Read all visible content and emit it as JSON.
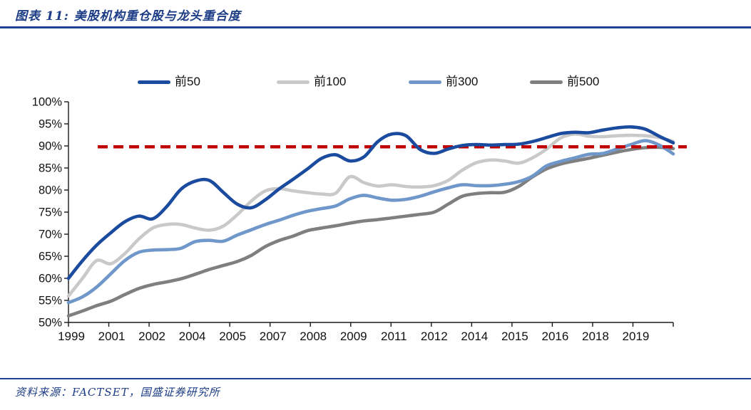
{
  "header": {
    "title": "图表 11:  美股机构重仓股与龙头重合度"
  },
  "footer": {
    "source_text": "资料来源：FACTSET，国盛证券研究所"
  },
  "colors": {
    "accent_navy": "#1c3c86",
    "rule_navy": "#1e4191",
    "reference_red": "#c00000",
    "axis_black": "#1a1a1a"
  },
  "chart_data": {
    "type": "line",
    "title": "美股机构重仓股与龙头重合度",
    "xlabel": "",
    "ylabel": "",
    "ylim": [
      50,
      100
    ],
    "ytick_step": 5,
    "ytick_labels": [
      "100%",
      "95%",
      "90%",
      "85%",
      "80%",
      "75%",
      "70%",
      "65%",
      "60%",
      "55%",
      "50%"
    ],
    "x_tick_labels": [
      "1999",
      "2001",
      "2002",
      "2004",
      "2005",
      "2007",
      "2008",
      "2009",
      "2011",
      "2012",
      "2014",
      "2015",
      "2016",
      "2018",
      "2019"
    ],
    "x_years": [
      1999.0,
      1999.5,
      2000.0,
      2000.5,
      2001.0,
      2001.5,
      2002.0,
      2002.5,
      2003.0,
      2003.5,
      2004.0,
      2004.5,
      2005.0,
      2005.5,
      2006.0,
      2006.5,
      2007.0,
      2007.5,
      2008.0,
      2008.5,
      2009.0,
      2009.5,
      2010.0,
      2010.5,
      2011.0,
      2011.5,
      2012.0,
      2012.5,
      2013.0,
      2013.5,
      2014.0,
      2014.5,
      2015.0,
      2015.5,
      2016.0,
      2016.5,
      2017.0,
      2017.5,
      2018.0,
      2018.5,
      2019.0,
      2019.5,
      2020.0,
      2020.5
    ],
    "grid": false,
    "legend_position": "top",
    "series": [
      {
        "name": "前50",
        "color": "#1b4b9f",
        "values": [
          60.0,
          64.0,
          67.5,
          70.3,
          72.8,
          74.1,
          73.5,
          76.3,
          80.2,
          82.0,
          82.2,
          79.5,
          76.8,
          76.0,
          77.8,
          80.3,
          82.5,
          84.8,
          87.2,
          88.0,
          86.6,
          87.5,
          91.0,
          92.7,
          92.3,
          89.2,
          88.3,
          89.3,
          90.1,
          90.3,
          90.2,
          90.3,
          90.4,
          91.0,
          91.9,
          92.8,
          93.1,
          93.0,
          93.6,
          94.1,
          94.3,
          93.8,
          92.2,
          90.7
        ]
      },
      {
        "name": "前100",
        "color": "#c9c9c9",
        "values": [
          56.0,
          60.0,
          64.0,
          63.3,
          65.6,
          68.9,
          71.4,
          72.2,
          72.2,
          71.4,
          70.9,
          71.8,
          74.4,
          77.5,
          79.8,
          80.3,
          79.8,
          79.4,
          79.1,
          79.3,
          83.0,
          81.7,
          80.9,
          81.2,
          80.8,
          80.7,
          81.0,
          82.2,
          84.5,
          86.2,
          86.8,
          86.6,
          86.1,
          87.3,
          89.3,
          91.8,
          92.7,
          92.2,
          92.1,
          92.3,
          92.4,
          92.3,
          91.9,
          91.0
        ]
      },
      {
        "name": "前300",
        "color": "#6f97c9",
        "values": [
          54.5,
          55.8,
          58.0,
          61.0,
          64.0,
          65.9,
          66.4,
          66.5,
          66.8,
          68.3,
          68.6,
          68.4,
          69.8,
          71.0,
          72.2,
          73.2,
          74.3,
          75.2,
          75.8,
          76.4,
          78.0,
          78.8,
          78.2,
          77.7,
          77.9,
          78.6,
          79.6,
          80.5,
          81.2,
          81.0,
          81.0,
          81.3,
          81.9,
          83.2,
          85.5,
          86.5,
          87.3,
          88.1,
          88.3,
          89.3,
          90.3,
          91.2,
          90.2,
          88.2
        ]
      },
      {
        "name": "前500",
        "color": "#7f7f7f",
        "values": [
          51.5,
          52.6,
          53.8,
          54.8,
          56.3,
          57.7,
          58.6,
          59.2,
          59.9,
          60.9,
          62.0,
          62.9,
          63.8,
          65.2,
          67.2,
          68.6,
          69.6,
          70.8,
          71.4,
          71.9,
          72.5,
          73.0,
          73.3,
          73.7,
          74.1,
          74.5,
          75.0,
          76.8,
          78.6,
          79.2,
          79.4,
          79.5,
          80.8,
          83.0,
          84.8,
          85.9,
          86.6,
          87.2,
          87.9,
          88.6,
          89.2,
          89.6,
          89.7,
          89.4
        ]
      }
    ],
    "reference_line": {
      "value": 89.8,
      "color": "#c00000",
      "style": "dashed"
    }
  }
}
